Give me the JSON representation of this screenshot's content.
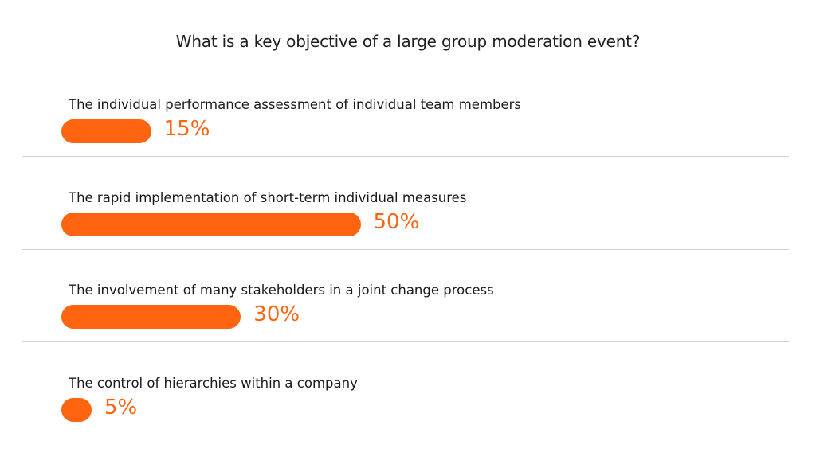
{
  "poll": {
    "question": "What is a key objective of a large group moderation event?",
    "accent_color": "#ff6411",
    "options": [
      {
        "label": "The individual performance assessment of individual team members",
        "percent": 15,
        "percent_label": "15%"
      },
      {
        "label": "The rapid implementation of short-term individual measures",
        "percent": 50,
        "percent_label": "50%"
      },
      {
        "label": "The involvement of many stakeholders in a joint change process",
        "percent": 30,
        "percent_label": "30%"
      },
      {
        "label": "The control of hierarchies within a company",
        "percent": 5,
        "percent_label": "5%"
      }
    ]
  },
  "chart_data": {
    "type": "bar",
    "orientation": "horizontal",
    "title": "What is a key objective of a large group moderation event?",
    "categories": [
      "The individual performance assessment of individual team members",
      "The rapid implementation of short-term individual measures",
      "The involvement of many stakeholders in a joint change process",
      "The control of hierarchies within a company"
    ],
    "values": [
      15,
      50,
      30,
      5
    ],
    "unit": "%",
    "color": "#ff6411",
    "grid": false,
    "legend": "none"
  }
}
